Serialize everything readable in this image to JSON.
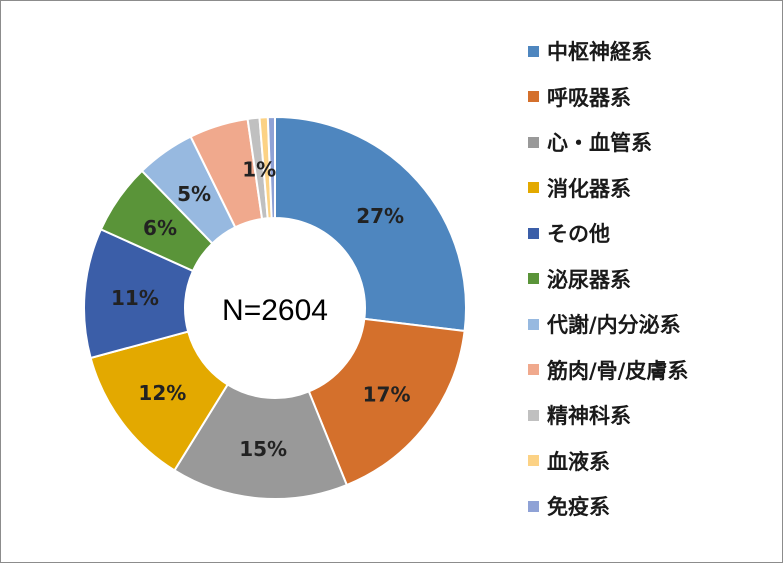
{
  "chart_data": {
    "type": "pie",
    "variant": "donut",
    "center_label": "N=2604",
    "legend_position": "right",
    "categories": [
      "中枢神経系",
      "呼吸器系",
      "心・血管系",
      "消化器系",
      "その他",
      "泌尿器系",
      "代謝/内分泌系",
      "筋肉/骨/皮膚系",
      "精神科系",
      "血液系",
      "免疫系"
    ],
    "values": [
      27,
      17,
      15,
      12,
      11,
      6,
      5,
      5,
      1,
      0.7,
      0.6
    ],
    "data_labels": [
      "27%",
      "17%",
      "15%",
      "12%",
      "11%",
      "6%",
      "5%",
      "",
      "1%",
      "",
      ""
    ],
    "colors": [
      "#4e86bf",
      "#d4702c",
      "#999999",
      "#e3a900",
      "#3b5ea8",
      "#5a9439",
      "#97b9e0",
      "#f0a98d",
      "#c0c0c0",
      "#fcd285",
      "#8fa2d6"
    ]
  }
}
